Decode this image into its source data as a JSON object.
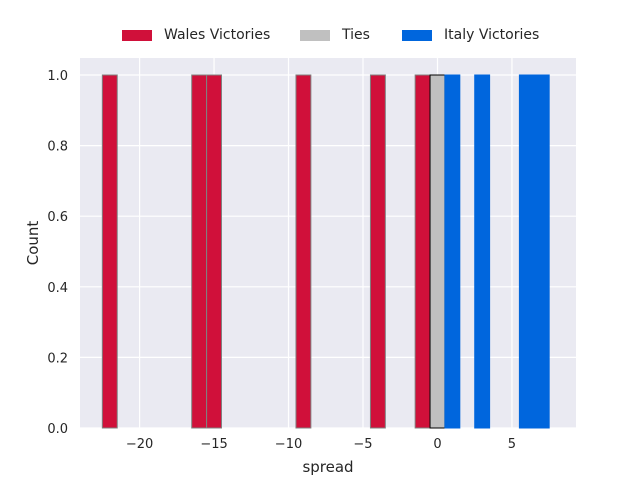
{
  "chart_data": {
    "type": "bar",
    "title": "",
    "xlabel": "spread",
    "ylabel": "Count",
    "xlim": [
      -24,
      9.3
    ],
    "ylim": [
      0,
      1.0
    ],
    "xticks": [
      -20,
      -15,
      -10,
      -5,
      0,
      5
    ],
    "xtick_labels": [
      "−20",
      "−15",
      "−10",
      "−5",
      "0",
      "5"
    ],
    "yticks": [
      0.0,
      0.2,
      0.4,
      0.6,
      0.8,
      1.0
    ],
    "ytick_labels": [
      "0.0",
      "0.2",
      "0.4",
      "0.6",
      "0.8",
      "1.0"
    ],
    "grid": true,
    "legend_position": "top-center",
    "series": [
      {
        "name": "Wales Victories",
        "color": "#d0103a",
        "edge": "#808080",
        "bin_width": 1.0,
        "x": [
          -22,
          -16,
          -15,
          -9,
          -4,
          -1
        ],
        "values": [
          1,
          1,
          1,
          1,
          1,
          1
        ]
      },
      {
        "name": "Ties",
        "color": "#c0c0c0",
        "edge": "#000000",
        "bin_width": 1.0,
        "x": [
          0
        ],
        "values": [
          1
        ]
      },
      {
        "name": "Italy Victories",
        "color": "#0066dd",
        "edge": "#0066dd",
        "bin_width": 1.0,
        "x": [
          1,
          3,
          6,
          7
        ],
        "values": [
          1,
          1,
          1,
          1
        ]
      }
    ]
  },
  "legend": {
    "items": [
      {
        "label": "Wales Victories",
        "color": "#d0103a"
      },
      {
        "label": "Ties",
        "color": "#c0c0c0"
      },
      {
        "label": "Italy Victories",
        "color": "#0066dd"
      }
    ]
  }
}
